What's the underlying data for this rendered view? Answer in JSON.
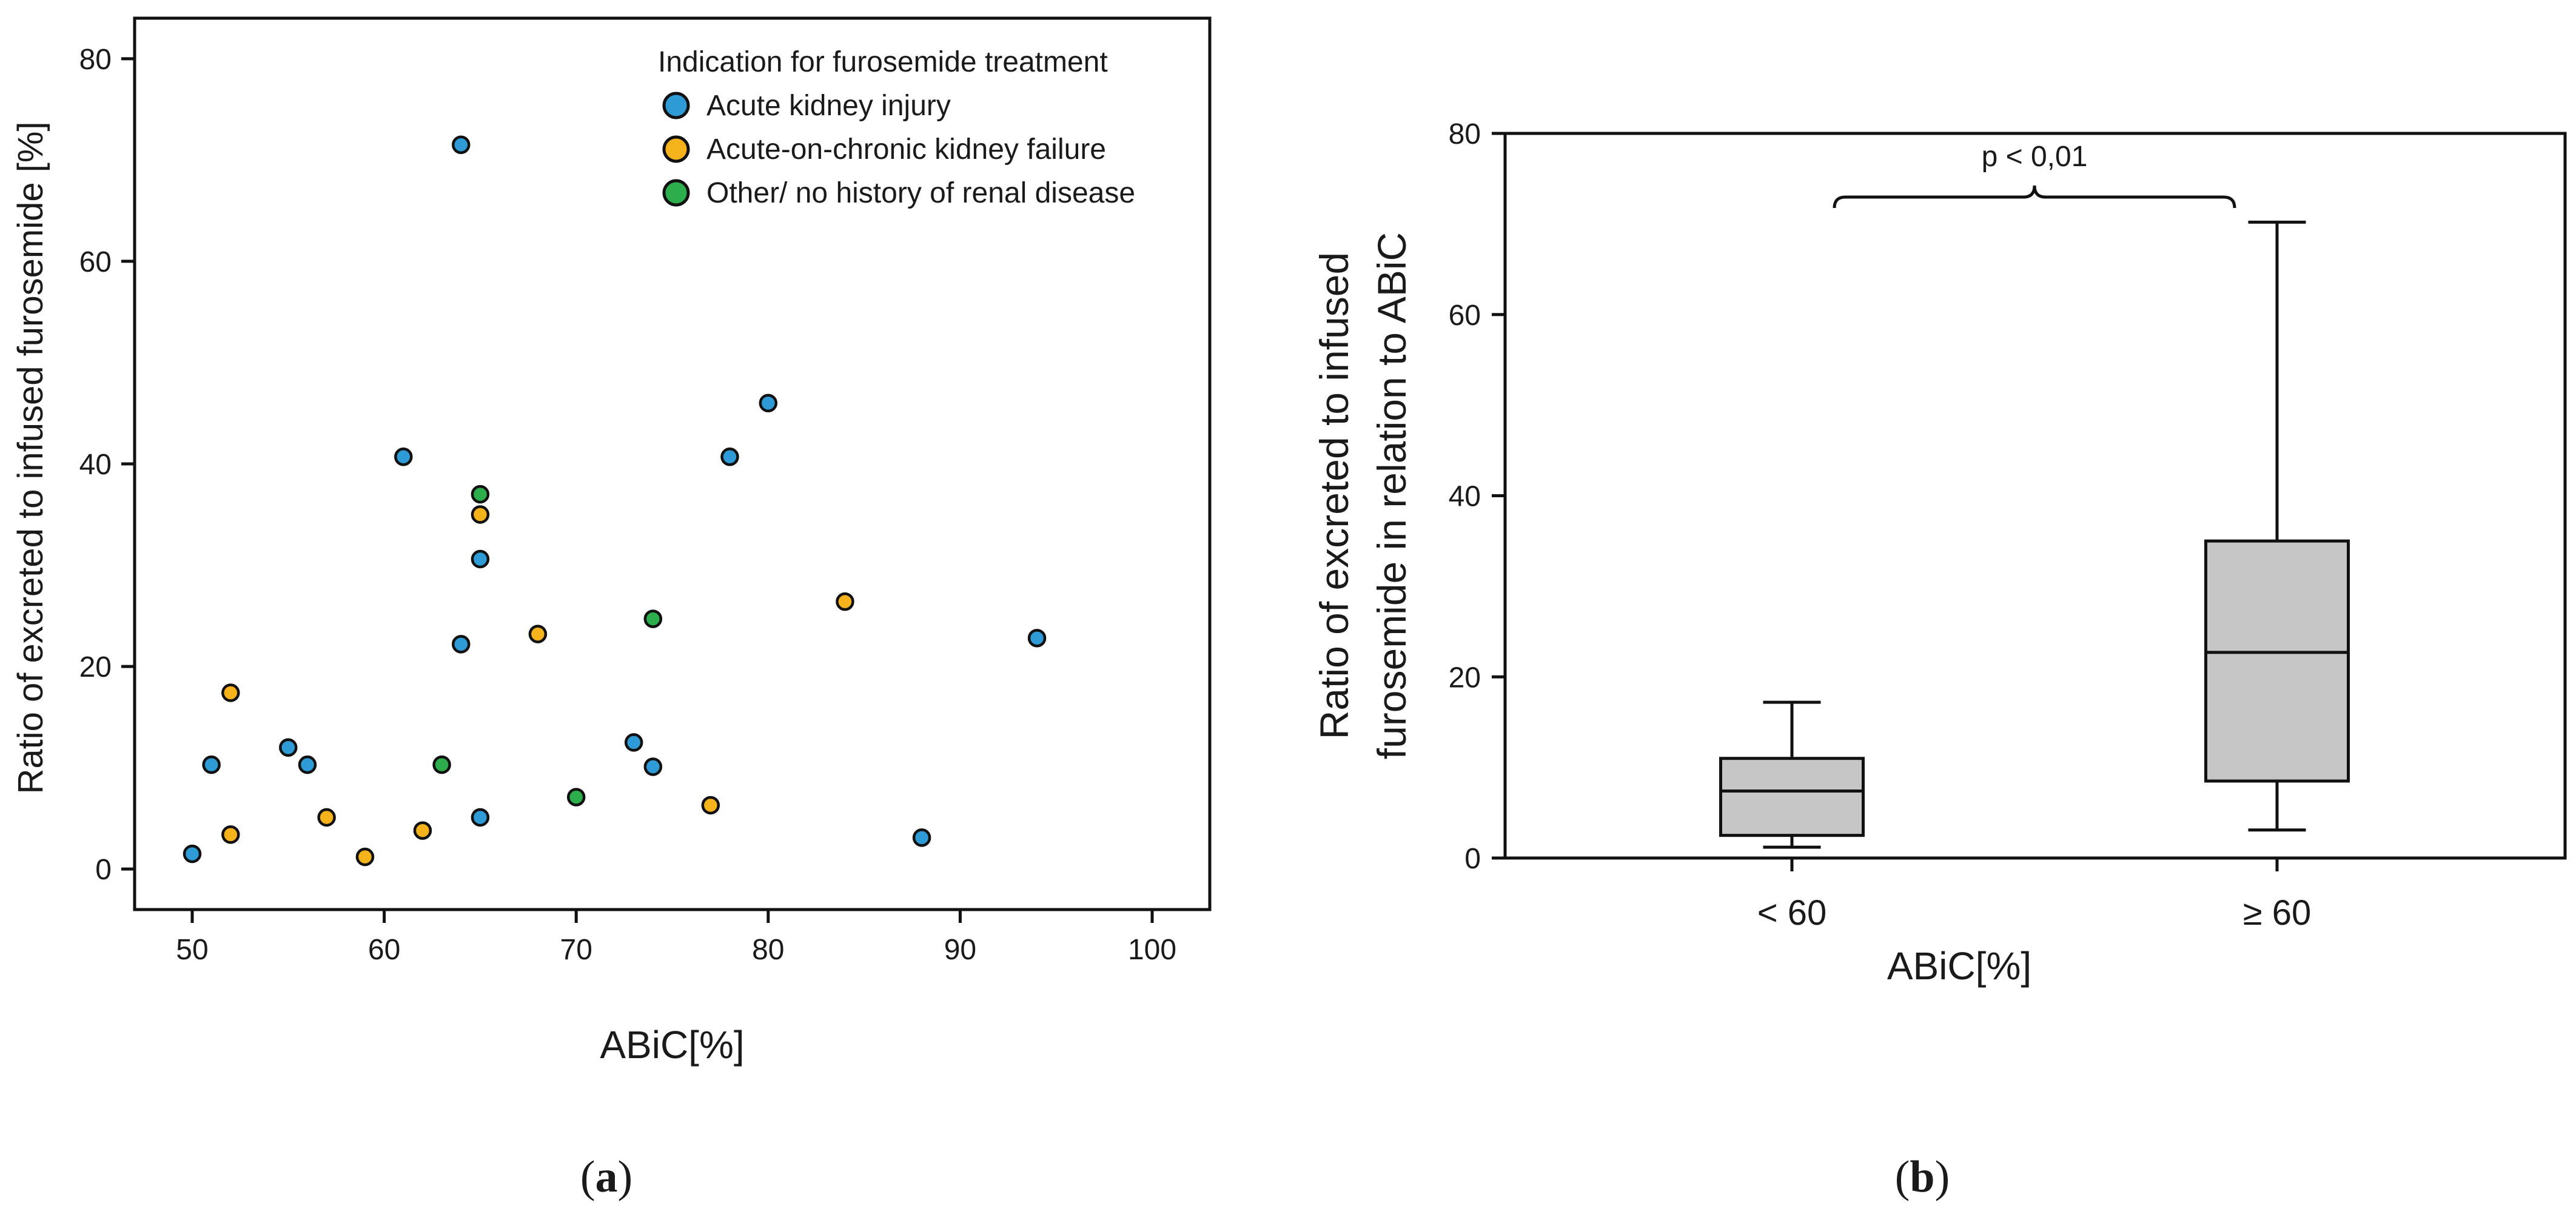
{
  "chart_data": [
    {
      "type": "scatter",
      "panel_label": "(a)",
      "panel_label_parts": [
        "(",
        "a",
        ")"
      ],
      "xlabel": "ABiC[%]",
      "ylabel": "Ratio of excreted to infused furosemide [%]",
      "xlim": [
        47,
        103
      ],
      "ylim": [
        -4,
        84
      ],
      "xticks": [
        50,
        60,
        70,
        80,
        90,
        100
      ],
      "yticks": [
        0,
        20,
        40,
        60,
        80
      ],
      "legend": {
        "title": "Indication for furosemide treatment",
        "placement": "top-right"
      },
      "series": [
        {
          "name": "Acute kidney injury",
          "color": "#2E9BD6",
          "points": [
            [
              50,
              1.5
            ],
            [
              51,
              10.3
            ],
            [
              55,
              12.0
            ],
            [
              56,
              10.3
            ],
            [
              61,
              40.7
            ],
            [
              64,
              71.5
            ],
            [
              64,
              22.2
            ],
            [
              65,
              30.6
            ],
            [
              65,
              5.1
            ],
            [
              73,
              12.5
            ],
            [
              74,
              10.1
            ],
            [
              78,
              40.7
            ],
            [
              80,
              46.0
            ],
            [
              88,
              3.1
            ],
            [
              94,
              22.8
            ]
          ]
        },
        {
          "name": "Acute-on-chronic kidney failure",
          "color": "#F6B21B",
          "points": [
            [
              52,
              17.4
            ],
            [
              52,
              3.4
            ],
            [
              57,
              5.1
            ],
            [
              59,
              1.2
            ],
            [
              62,
              3.8
            ],
            [
              65,
              35.0
            ],
            [
              68,
              23.2
            ],
            [
              77,
              6.3
            ],
            [
              84,
              26.4
            ]
          ]
        },
        {
          "name": "Other/ no history of renal disease",
          "color": "#2BAE4B",
          "points": [
            [
              63,
              10.3
            ],
            [
              65,
              37.0
            ],
            [
              70,
              7.1
            ],
            [
              74,
              24.7
            ]
          ]
        }
      ]
    },
    {
      "type": "box",
      "panel_label": "(b)",
      "panel_label_parts": [
        "(",
        "b",
        ")"
      ],
      "xlabel": "ABiC[%]",
      "ylabel_lines": [
        "Ratio of excreted to infused",
        "furosemide in relation to ABiC"
      ],
      "ylim": [
        0,
        80
      ],
      "yticks": [
        0,
        20,
        40,
        60,
        80
      ],
      "box_color": "#C6C6C6",
      "categories": [
        "< 60",
        "≥ 60"
      ],
      "boxes": [
        {
          "category": "< 60",
          "min": 1.2,
          "q1": 2.5,
          "median": 7.4,
          "q3": 11.0,
          "max": 17.2
        },
        {
          "category": "≥ 60",
          "min": 3.1,
          "q1": 8.5,
          "median": 22.7,
          "q3": 35.0,
          "max": 70.2
        }
      ],
      "annotation": {
        "text": "p < 0,01",
        "between": [
          "< 60",
          "≥ 60"
        ]
      }
    }
  ]
}
